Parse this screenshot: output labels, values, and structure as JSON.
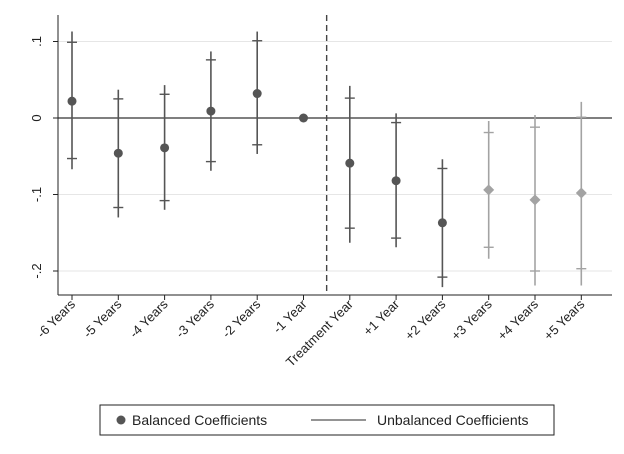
{
  "chart_data": {
    "type": "scatter",
    "title": "",
    "xlabel": "",
    "ylabel": "",
    "categories": [
      "-6 Years",
      "-5 Years",
      "-4 Years",
      "-3 Years",
      "-2 Years",
      "-1 Year",
      "Treatment Year",
      "+1 Year",
      "+2 Years",
      "+3 Years",
      "+4 Years",
      "+5 Years"
    ],
    "ylim": [
      -0.23,
      0.12
    ],
    "yticks": [
      0.1,
      0,
      -0.1,
      -0.2
    ],
    "ytick_labels": [
      ".1",
      "0",
      "-.1",
      "-.2"
    ],
    "grid": true,
    "legend_position": "bottom",
    "reference_line_y": 0,
    "treatment_divider_between": [
      "-1 Year",
      "Treatment Year"
    ],
    "series": [
      {
        "name": "Balanced Coefficients",
        "estimates": [
          0.022,
          -0.046,
          -0.039,
          0.009,
          0.032,
          0.0,
          -0.059,
          -0.082,
          -0.137,
          null,
          null,
          null
        ],
        "ci_outer_low": [
          -0.067,
          -0.13,
          -0.12,
          -0.069,
          -0.047,
          null,
          -0.163,
          -0.169,
          -0.221,
          null,
          null,
          null
        ],
        "ci_outer_high": [
          0.113,
          0.037,
          0.043,
          0.087,
          0.113,
          null,
          0.042,
          0.006,
          -0.054,
          null,
          null,
          null
        ],
        "ci_inner_low": [
          -0.053,
          -0.117,
          -0.108,
          -0.057,
          -0.035,
          null,
          -0.144,
          -0.157,
          -0.208,
          null,
          null,
          null
        ],
        "ci_inner_high": [
          0.099,
          0.025,
          0.031,
          0.076,
          0.101,
          null,
          0.026,
          -0.006,
          -0.066,
          null,
          null,
          null
        ],
        "color": "#555555",
        "marker": "circle"
      },
      {
        "name": "Unbalanced Coefficients",
        "estimates": [
          null,
          null,
          null,
          null,
          null,
          null,
          null,
          null,
          null,
          -0.094,
          -0.107,
          -0.098
        ],
        "ci_outer_low": [
          null,
          null,
          null,
          null,
          null,
          null,
          null,
          null,
          null,
          -0.184,
          -0.219,
          -0.219
        ],
        "ci_outer_high": [
          null,
          null,
          null,
          null,
          null,
          null,
          null,
          null,
          null,
          -0.004,
          0.004,
          0.021
        ],
        "ci_inner_low": [
          null,
          null,
          null,
          null,
          null,
          null,
          null,
          null,
          null,
          -0.169,
          -0.2,
          -0.197
        ],
        "ci_inner_high": [
          null,
          null,
          null,
          null,
          null,
          null,
          null,
          null,
          null,
          -0.019,
          -0.012,
          0.001
        ],
        "color": "#a3a3a3",
        "marker": "diamond"
      }
    ]
  },
  "legend": {
    "items": [
      {
        "label": "Balanced Coefficients",
        "symbol": "dot",
        "color": "#555555"
      },
      {
        "label": "Unbalanced Coefficients",
        "symbol": "line",
        "color": "#555555"
      }
    ]
  },
  "colors": {
    "axis": "#222222",
    "grid": "#e6e6e6",
    "zero_line": "#333333",
    "divider": "#444444"
  }
}
